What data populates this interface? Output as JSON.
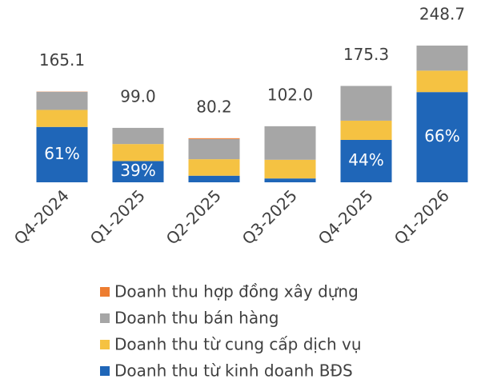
{
  "chart_data": {
    "type": "stacked_bar",
    "categories": [
      "Q4-2024",
      "Q1-2025",
      "Q2-2025",
      "Q3-2025",
      "Q4-2025",
      "Q1-2026"
    ],
    "series": [
      {
        "name": "Doanh thu từ kinh doanh BĐS",
        "color": "#1f66b8",
        "values": [
          100.7,
          38.6,
          12,
          7,
          77.1,
          164.1
        ]
      },
      {
        "name": "Doanh thu từ cung cấp dịch vụ",
        "color": "#f5c242",
        "values": [
          31,
          31,
          30,
          34,
          35,
          39
        ]
      },
      {
        "name": "Doanh thu bán hàng",
        "color": "#a6a6a6",
        "values": [
          33,
          29.4,
          36.7,
          61,
          63.2,
          45.6
        ]
      },
      {
        "name": "Doanh thu hợp đồng xây dựng",
        "color": "#ed7d31",
        "values": [
          0.4,
          0,
          1.5,
          0,
          0,
          0
        ]
      }
    ],
    "totals": [
      165.1,
      99.0,
      80.2,
      102.0,
      175.3,
      248.7
    ],
    "total_labels": [
      "165.1",
      "99.0",
      "80.2",
      "102.0",
      "175.3",
      "248.7"
    ],
    "shares": [
      61,
      39,
      null,
      null,
      44,
      66
    ],
    "share_labels": [
      "61%",
      "39%",
      null,
      null,
      "44%",
      "66%"
    ],
    "ylim": [
      0,
      248.7
    ]
  }
}
